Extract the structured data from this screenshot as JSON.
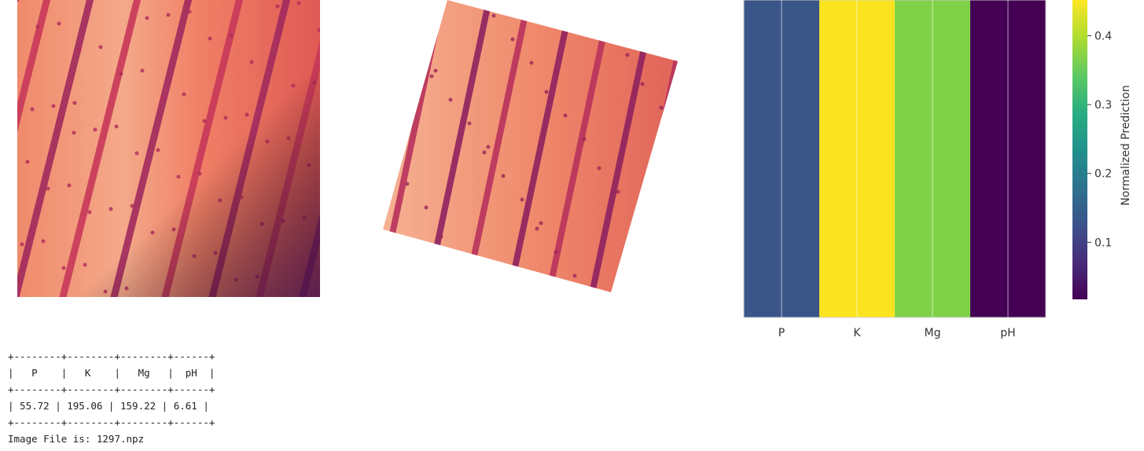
{
  "images": {
    "left": {
      "name": "field-image-original"
    },
    "rotated": {
      "name": "field-image-rotated"
    }
  },
  "chart_data": {
    "type": "heatmap",
    "categories": [
      "P",
      "K",
      "Mg",
      "pH"
    ],
    "values": [
      0.11,
      0.45,
      0.36,
      0.02
    ],
    "colorbar": {
      "label": "Normalized Prediction",
      "ticks": [
        "0.1",
        "0.2",
        "0.3",
        "0.4"
      ],
      "tick_values": [
        0.1,
        0.2,
        0.3,
        0.4
      ],
      "range": [
        0.017,
        0.452
      ],
      "colormap": "viridis"
    },
    "colors": [
      "#3a5689",
      "#fbe41f",
      "#7fd248",
      "#440154"
    ]
  },
  "table": {
    "border": "+--------+--------+--------+------+",
    "header": "|   P    |   K    |   Mg   |  pH  |",
    "row": "| 55.72 | 195.06 | 159.22 | 6.61 |",
    "footer": "Image File is: 1297.npz"
  }
}
